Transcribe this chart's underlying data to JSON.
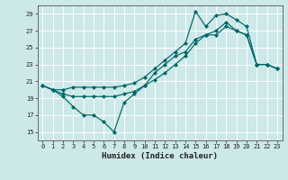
{
  "xlabel": "Humidex (Indice chaleur)",
  "bg_color": "#cde8e8",
  "grid_color": "#ffffff",
  "line_color": "#006666",
  "xlim": [
    -0.5,
    23.5
  ],
  "ylim": [
    14.0,
    30.0
  ],
  "yticks": [
    15,
    17,
    19,
    21,
    23,
    25,
    27,
    29
  ],
  "xticks": [
    0,
    1,
    2,
    3,
    4,
    5,
    6,
    7,
    8,
    9,
    10,
    11,
    12,
    13,
    14,
    15,
    16,
    17,
    18,
    19,
    20,
    21,
    22,
    23
  ],
  "line1_x": [
    0,
    1,
    2,
    3,
    4,
    5,
    6,
    7,
    8,
    9,
    10,
    11,
    12,
    13,
    14,
    15,
    16,
    17,
    18,
    19,
    20,
    21,
    22,
    23
  ],
  "line1_y": [
    20.5,
    20.0,
    19.2,
    18.0,
    17.0,
    17.0,
    16.2,
    15.0,
    18.5,
    19.5,
    20.5,
    22.0,
    23.0,
    24.0,
    24.5,
    26.0,
    26.5,
    26.5,
    27.5,
    27.0,
    26.5,
    23.0,
    23.0,
    22.5
  ],
  "line2_x": [
    0,
    1,
    2,
    3,
    4,
    5,
    6,
    7,
    8,
    9,
    10,
    11,
    12,
    13,
    14,
    15,
    16,
    17,
    18,
    19,
    20,
    21,
    22,
    23
  ],
  "line2_y": [
    20.5,
    20.0,
    20.0,
    20.3,
    20.3,
    20.3,
    20.3,
    20.3,
    20.5,
    20.8,
    21.5,
    22.5,
    23.5,
    24.5,
    25.5,
    29.3,
    27.5,
    28.8,
    29.0,
    28.3,
    27.5,
    23.0,
    23.0,
    22.5
  ],
  "line3_x": [
    0,
    1,
    2,
    3,
    4,
    5,
    6,
    7,
    8,
    9,
    10,
    11,
    12,
    13,
    14,
    15,
    16,
    17,
    18,
    19,
    20,
    21,
    22,
    23
  ],
  "line3_y": [
    20.5,
    20.0,
    19.5,
    19.2,
    19.2,
    19.2,
    19.2,
    19.2,
    19.5,
    19.8,
    20.5,
    21.2,
    22.0,
    23.0,
    24.0,
    25.5,
    26.5,
    27.0,
    28.0,
    27.0,
    26.5,
    23.0,
    23.0,
    22.5
  ]
}
